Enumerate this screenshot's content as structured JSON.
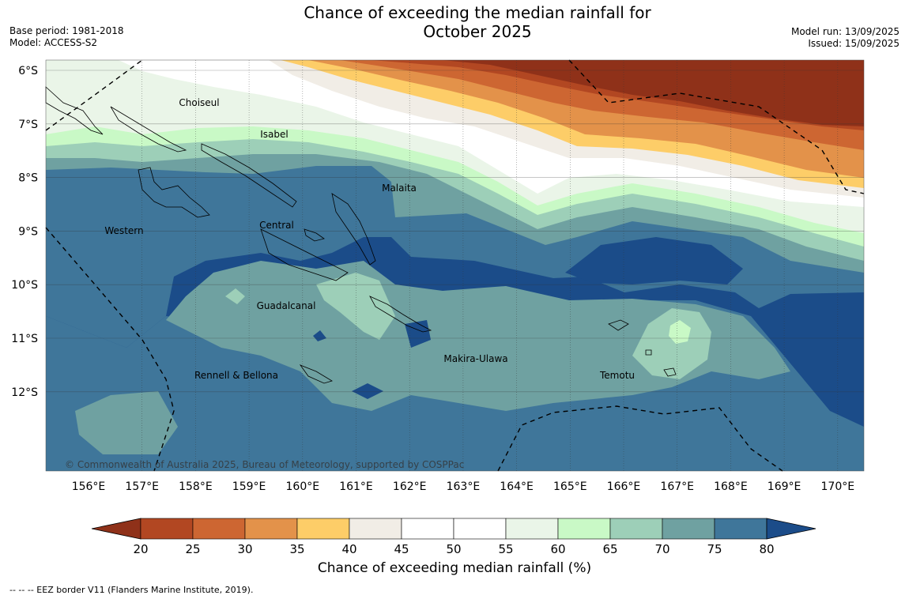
{
  "header": {
    "title_line1": "Chance of exceeding the median rainfall for",
    "title_line2": "October 2025",
    "base_period": "Base period: 1981-2018",
    "model": "Model: ACCESS-S2",
    "model_run": "Model run: 13/09/2025",
    "issued": "Issued: 15/09/2025"
  },
  "map": {
    "lat_labels": [
      "6°S",
      "7°S",
      "8°S",
      "9°S",
      "10°S",
      "11°S",
      "12°S"
    ],
    "lon_labels": [
      "156°E",
      "157°E",
      "158°E",
      "159°E",
      "160°E",
      "161°E",
      "162°E",
      "163°E",
      "164°E",
      "165°E",
      "166°E",
      "167°E",
      "168°E",
      "169°E",
      "170°E"
    ],
    "provinces": [
      "Choiseul",
      "Isabel",
      "Malaita",
      "Western",
      "Central",
      "Guadalcanal",
      "Makira-Ulawa",
      "Rennell & Bellona",
      "Temotu"
    ],
    "copyright": "© Commonwealth of Australia 2025, Bureau of Meteorology, supported by COSPPac"
  },
  "colorbar": {
    "ticks": [
      "20",
      "25",
      "30",
      "35",
      "40",
      "45",
      "50",
      "55",
      "60",
      "65",
      "70",
      "75",
      "80"
    ],
    "colors": [
      "#8f3119",
      "#b24722",
      "#cd6632",
      "#e3924a",
      "#fdcd68",
      "#f1ede6",
      "#ffffff",
      "#ffffff",
      "#eaf5e8",
      "#c9f9c6",
      "#9dcfb8",
      "#6fa1a1",
      "#3f769a",
      "#1b4c89"
    ],
    "title": "Chance of exceeding median rainfall (%)"
  },
  "legend_note": "-- -- -- EEZ border V11 (Flanders Marine Institute, 2019)."
}
